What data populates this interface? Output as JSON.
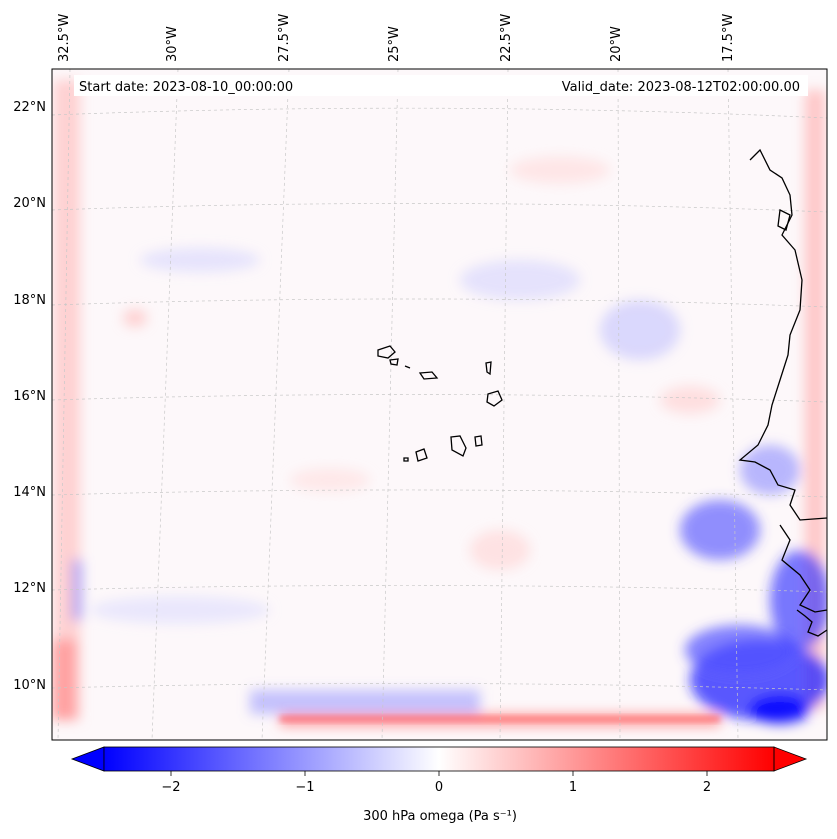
{
  "header": {
    "start_date": "Start date: 2023-08-10_00:00:00",
    "valid_date": "Valid_date: 2023-08-12T02:00:00.00"
  },
  "axes": {
    "lon_labels": [
      "32.5°W",
      "30°W",
      "27.5°W",
      "25°W",
      "22.5°W",
      "20°W",
      "17.5°W"
    ],
    "lat_labels": [
      "22°N",
      "20°N",
      "18°N",
      "16°N",
      "14°N",
      "12°N",
      "10°N"
    ]
  },
  "colorbar": {
    "label": "300 hPa omega (Pa s⁻¹)",
    "ticks": [
      "−2",
      "−1",
      "0",
      "1",
      "2"
    ],
    "tick_values": [
      -2,
      -1,
      0,
      1,
      2
    ],
    "range": [
      -2.5,
      2.5
    ],
    "cmap": "bwr",
    "color_neg": "#0000ff",
    "color_zero": "#ffffff",
    "color_pos": "#ff0000"
  },
  "map": {
    "projection": "lambert-conformal",
    "gridlines": "dashed-light-gray",
    "coastline_color": "#000000"
  }
}
